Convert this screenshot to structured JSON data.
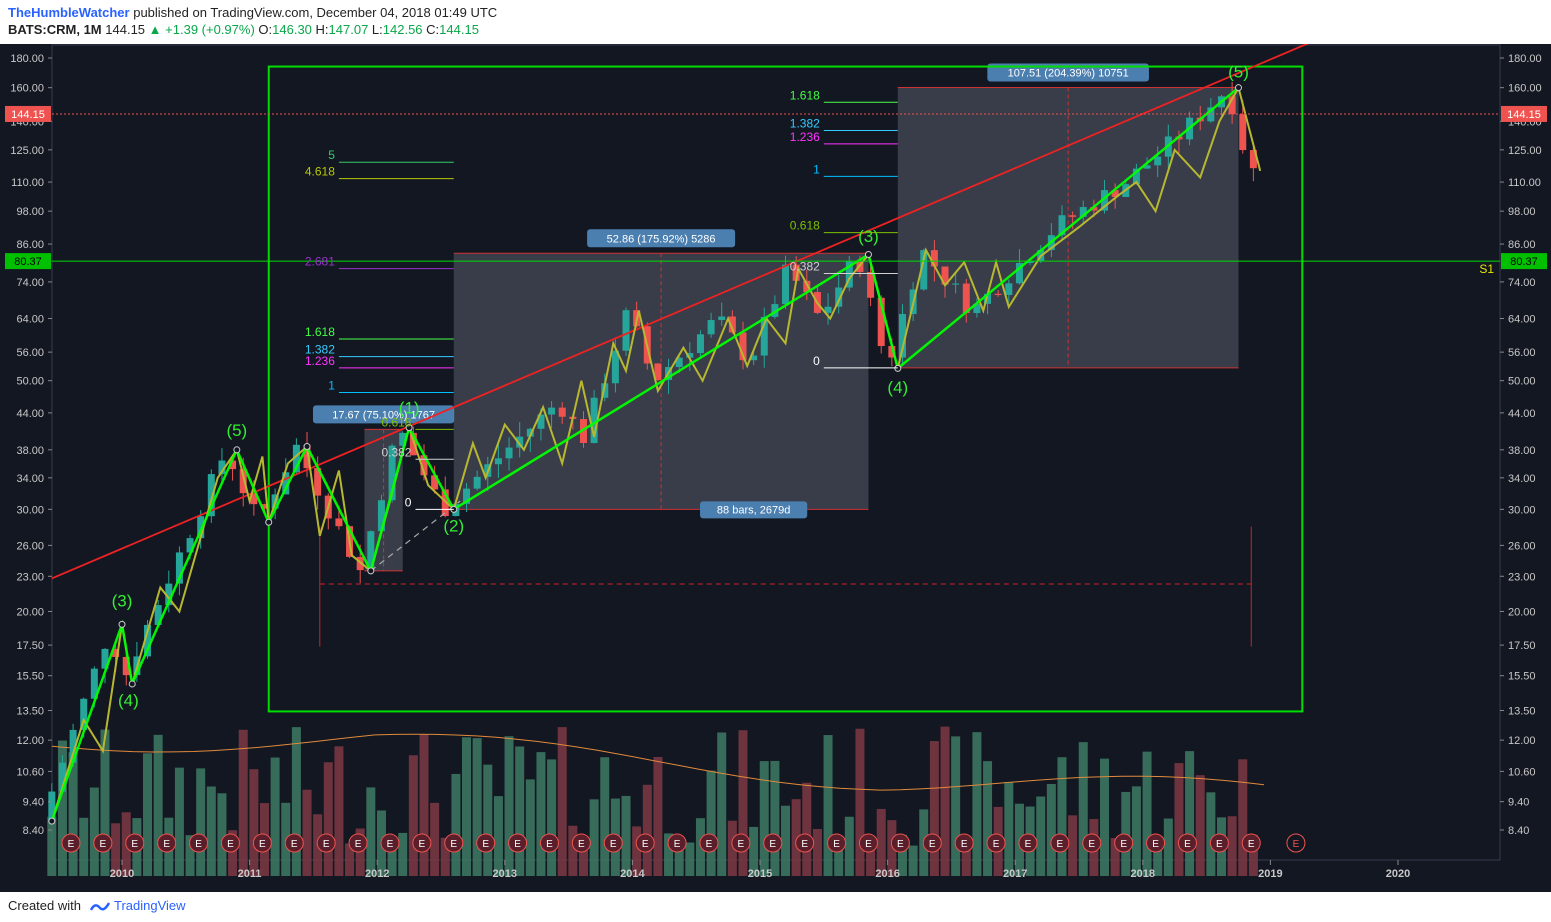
{
  "header": {
    "author": "TheHumbleWatcher",
    "published": "published on TradingView.com, December 04, 2018 01:49 UTC",
    "symbol": "BATS:CRM, 1M",
    "last": "144.15",
    "change": "+1.39 (+0.97%)",
    "open_label": "O:",
    "open": "146.30",
    "high_label": "H:",
    "high": "147.07",
    "low_label": "L:",
    "low": "142.56",
    "close_label": "C:",
    "close": "144.15"
  },
  "footer": {
    "created": "Created with",
    "brand": "TradingView"
  },
  "colors": {
    "bg": "#131722",
    "up": "#26a69a",
    "down": "#ef5350",
    "volUp": "#3e7a64",
    "volDown": "#7e3a44",
    "wave": "#00ff00",
    "trend": "#ff2020",
    "zigzag": "#b8b830"
  },
  "chart_data": {
    "type": "candlestick",
    "title": "",
    "price_axis_labels": [
      "180.00",
      "160.00",
      "140.00",
      "125.00",
      "110.00",
      "98.00",
      "86.00",
      "74.00",
      "64.00",
      "56.00",
      "50.00",
      "44.00",
      "38.00",
      "34.00",
      "30.00",
      "26.00",
      "23.00",
      "20.00",
      "17.50",
      "15.50",
      "13.50",
      "12.00",
      "10.60",
      "9.40",
      "8.40"
    ],
    "price_levels": [
      180,
      160,
      140,
      125,
      110,
      98,
      86,
      74,
      64,
      56,
      50,
      44,
      38,
      34,
      30,
      26,
      23,
      20,
      17.5,
      15.5,
      13.5,
      12,
      10.6,
      9.4,
      8.4
    ],
    "y_scale": "log",
    "time_axis_labels": [
      "2010",
      "2011",
      "2012",
      "2013",
      "2014",
      "2015",
      "2016",
      "2017",
      "2018",
      "2019",
      "2020"
    ],
    "last_price": "144.15",
    "s1_level": "80.37",
    "s1_label": "S1",
    "earnings_marker": "E",
    "earnings_count_history": 38,
    "earnings_future_label": "E",
    "wave_labels": [
      "(3)",
      "(4)",
      "(5)",
      "(1)",
      "(2)",
      "(3)",
      "(4)",
      "(5)"
    ],
    "wave_points": [
      {
        "label": "(3)",
        "time": 2010.0,
        "price": 19.0
      },
      {
        "label": "(4)",
        "time": 2010.05,
        "price": 15.0
      },
      {
        "label": "(5)",
        "time": 2010.9,
        "price": 38.0
      },
      {
        "label": "(1)",
        "time": 2012.25,
        "price": 41.5
      },
      {
        "label": "(2)",
        "time": 2012.6,
        "price": 30.0
      },
      {
        "label": "(3)",
        "time": 2015.85,
        "price": 82.0
      },
      {
        "label": "(4)",
        "time": 2016.08,
        "price": 52.0
      },
      {
        "label": "(5)",
        "time": 2018.75,
        "price": 160.0
      }
    ],
    "measure_boxes": [
      {
        "label": "17.67 (75.10%) 1767",
        "price_low": 23.5,
        "price_high": 41.2
      },
      {
        "label": "52.86 (175.92%) 5286",
        "price_low": 30.0,
        "price_high": 82.9
      },
      {
        "label": "107.51 (204.39%) 10751",
        "price_low": 52.6,
        "price_high": 160.1
      }
    ],
    "range_label": "88 bars, 2679d",
    "fib_sets": [
      {
        "levels": [
          {
            "t": "0",
            "c": "#ffffff",
            "p": 30.0
          },
          {
            "t": "0.382",
            "c": "#d0d0d0",
            "p": 36.6
          },
          {
            "t": "0.618",
            "c": "#7fc000",
            "p": 41.2
          }
        ]
      },
      {
        "levels": [
          {
            "t": "1",
            "c": "#00bfff",
            "p": 47.7
          },
          {
            "t": "1.236",
            "c": "#ff33ff",
            "p": 52.6
          },
          {
            "t": "1.382",
            "c": "#33ccff",
            "p": 55.0
          },
          {
            "t": "1.618",
            "c": "#44ff44",
            "p": 59.0
          },
          {
            "t": "2.681",
            "c": "#9933cc",
            "p": 78.0
          },
          {
            "t": "4.618",
            "c": "#b8c800",
            "p": 111.5
          },
          {
            "t": "5",
            "c": "#33cc66",
            "p": 119.0
          }
        ]
      },
      {
        "levels": [
          {
            "t": "0",
            "c": "#ffffff",
            "p": 52.6
          },
          {
            "t": "0.382",
            "c": "#d0d0d0",
            "p": 76.5
          },
          {
            "t": "0.618",
            "c": "#7fc000",
            "p": 90.0
          },
          {
            "t": "1",
            "c": "#00bfff",
            "p": 112.5
          },
          {
            "t": "1.236",
            "c": "#ff33ff",
            "p": 128.0
          },
          {
            "t": "1.382",
            "c": "#33ccff",
            "p": 135.0
          },
          {
            "t": "1.618",
            "c": "#44ff44",
            "p": 151.0
          }
        ]
      }
    ]
  }
}
